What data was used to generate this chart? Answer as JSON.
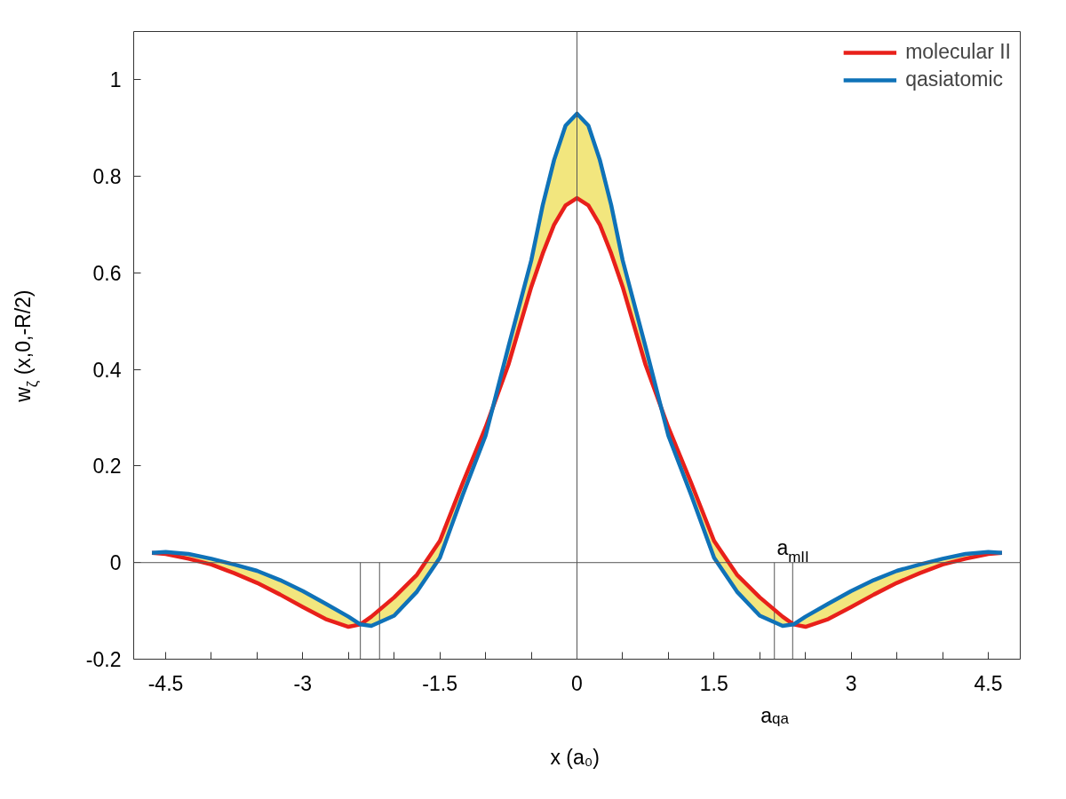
{
  "chart_data": {
    "type": "line",
    "xlabel": "x (a₀)",
    "ylabel": "w$_{ζ}$ (x,0,-R/2)",
    "x": [
      -4.65,
      -4.5,
      -4.25,
      -4,
      -3.75,
      -3.5,
      -3.25,
      -3,
      -2.75,
      -2.5,
      -2.37,
      -2.25,
      -2,
      -1.75,
      -1.5,
      -1.25,
      -1,
      -0.75,
      -0.5,
      -0.375,
      -0.25,
      -0.125,
      0,
      0.125,
      0.25,
      0.375,
      0.5,
      0.75,
      1,
      1.25,
      1.5,
      1.75,
      2,
      2.25,
      2.37,
      2.5,
      2.75,
      3,
      3.25,
      3.5,
      3.75,
      4,
      4.25,
      4.5,
      4.65
    ],
    "series": [
      {
        "name": "molecular II",
        "color": "#e8201a",
        "values": [
          0.02,
          0.018,
          0.008,
          -0.004,
          -0.022,
          -0.042,
          -0.066,
          -0.092,
          -0.117,
          -0.133,
          -0.128,
          -0.112,
          -0.072,
          -0.025,
          0.045,
          0.165,
          0.28,
          0.41,
          0.571,
          0.64,
          0.7,
          0.74,
          0.755,
          0.74,
          0.7,
          0.64,
          0.571,
          0.41,
          0.28,
          0.165,
          0.045,
          -0.025,
          -0.072,
          -0.112,
          -0.128,
          -0.133,
          -0.117,
          -0.092,
          -0.066,
          -0.042,
          -0.022,
          -0.004,
          0.008,
          0.018,
          0.02
        ]
      },
      {
        "name": "qasiatomic",
        "color": "#0f72b8",
        "values": [
          0.02,
          0.022,
          0.018,
          0.008,
          -0.004,
          -0.017,
          -0.036,
          -0.059,
          -0.085,
          -0.112,
          -0.128,
          -0.131,
          -0.11,
          -0.06,
          0.01,
          0.14,
          0.263,
          0.447,
          0.626,
          0.74,
          0.834,
          0.905,
          0.93,
          0.905,
          0.834,
          0.74,
          0.626,
          0.447,
          0.263,
          0.14,
          0.01,
          -0.06,
          -0.11,
          -0.131,
          -0.128,
          -0.112,
          -0.085,
          -0.059,
          -0.036,
          -0.017,
          -0.004,
          0.008,
          0.018,
          0.022,
          0.02
        ],
        "lower": [
          0.02,
          0.018,
          0.008,
          -0.004,
          -0.022,
          -0.042,
          -0.066,
          -0.092,
          -0.117,
          -0.133,
          -0.128,
          -0.131,
          -0.11,
          -0.06,
          0.01,
          0.14,
          0.263,
          0.41,
          0.571,
          0.64,
          0.7,
          0.74,
          0.755,
          0.74,
          0.7,
          0.64,
          0.571,
          0.41,
          0.263,
          0.14,
          0.01,
          -0.06,
          -0.11,
          -0.131,
          -0.128,
          -0.133,
          -0.117,
          -0.092,
          -0.066,
          -0.042,
          -0.022,
          -0.004,
          0.008,
          0.018,
          0.02
        ],
        "upper": [
          0.02,
          0.022,
          0.018,
          0.008,
          -0.004,
          -0.017,
          -0.036,
          -0.059,
          -0.085,
          -0.112,
          -0.128,
          -0.112,
          -0.072,
          -0.025,
          0.045,
          0.165,
          0.28,
          0.447,
          0.626,
          0.74,
          0.834,
          0.905,
          0.93,
          0.905,
          0.834,
          0.74,
          0.626,
          0.447,
          0.28,
          0.165,
          0.045,
          -0.025,
          -0.072,
          -0.112,
          -0.128,
          -0.112,
          -0.085,
          -0.059,
          -0.036,
          -0.017,
          -0.004,
          0.008,
          0.018,
          0.022,
          0.02
        ]
      }
    ],
    "xlim": [
      -4.85,
      4.85
    ],
    "ylim": [
      -0.2,
      1.1
    ],
    "xticks": [
      -4.5,
      {
        "value": -4,
        "label": null
      },
      {
        "value": -3.5,
        "label": null
      },
      -3,
      {
        "value": -2.5,
        "label": null
      },
      {
        "value": -2,
        "label": null
      },
      -1.5,
      {
        "value": -1,
        "label": null
      },
      {
        "value": -0.5,
        "label": null
      },
      0,
      {
        "value": 0.5,
        "label": null
      },
      {
        "value": 1,
        "label": null
      },
      1.5,
      {
        "value": 2,
        "label": null
      },
      {
        "value": 2.5,
        "label": null
      },
      3,
      {
        "value": 3.5,
        "label": null
      },
      {
        "value": 4,
        "label": null
      },
      4.5
    ],
    "yticks": [
      -0.2,
      0,
      0.2,
      0.4,
      0.6,
      0.8,
      1
    ],
    "ref_lines": [
      {
        "axis": "y",
        "value": 0,
        "color": "#555555"
      },
      {
        "axis": "x",
        "value": 0,
        "color": "#555555"
      },
      {
        "axis": "x",
        "value": -2.37,
        "color": "#555555"
      },
      {
        "axis": "x",
        "value": -2.16,
        "color": "#555555"
      },
      {
        "axis": "x",
        "value": 2.16,
        "color": "#555555",
        "label": "a$_{qa}$"
      },
      {
        "axis": "x",
        "value": 2.36,
        "color": "#555555",
        "label": "a$_{mII}$"
      }
    ],
    "legend": "top right",
    "grid": false,
    "marker": "none",
    "line_style": "solid"
  }
}
